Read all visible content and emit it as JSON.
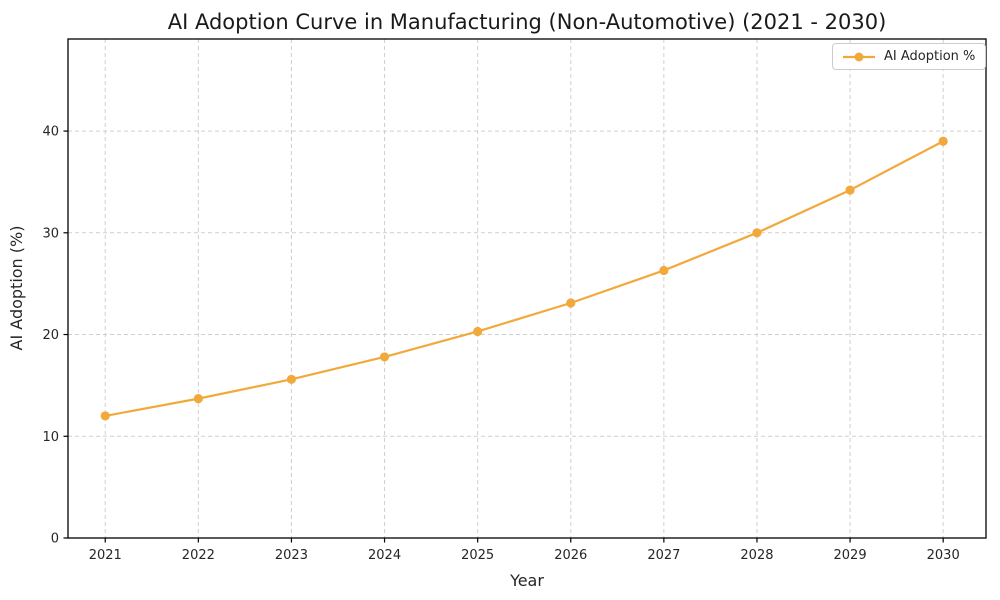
{
  "chart_data": {
    "type": "line",
    "title": "AI Adoption Curve in Manufacturing (Non-Automotive) (2021 - 2030)",
    "xlabel": "Year",
    "ylabel": "AI Adoption (%)",
    "x": [
      2021,
      2022,
      2023,
      2024,
      2025,
      2026,
      2027,
      2028,
      2029,
      2030
    ],
    "series": [
      {
        "name": "AI Adoption %",
        "values": [
          12.0,
          13.7,
          15.6,
          17.8,
          20.3,
          23.1,
          26.3,
          30.0,
          34.2,
          39.0
        ],
        "color": "#F2A93C",
        "marker": "circle"
      }
    ],
    "xticks": [
      2021,
      2022,
      2023,
      2024,
      2025,
      2026,
      2027,
      2028,
      2029,
      2030
    ],
    "yticks": [
      0,
      10,
      20,
      30,
      40
    ],
    "xlim": [
      2020.6,
      2030.46
    ],
    "ylim": [
      0,
      49.05
    ],
    "grid": true,
    "grid_style": "dashed",
    "grid_color": "#cfcfcf",
    "spine_color": "#000000",
    "legend_position": "upper right",
    "title_color": "#1a1a1a",
    "tick_color": "#262626"
  },
  "legend": {
    "label": "AI Adoption %"
  }
}
